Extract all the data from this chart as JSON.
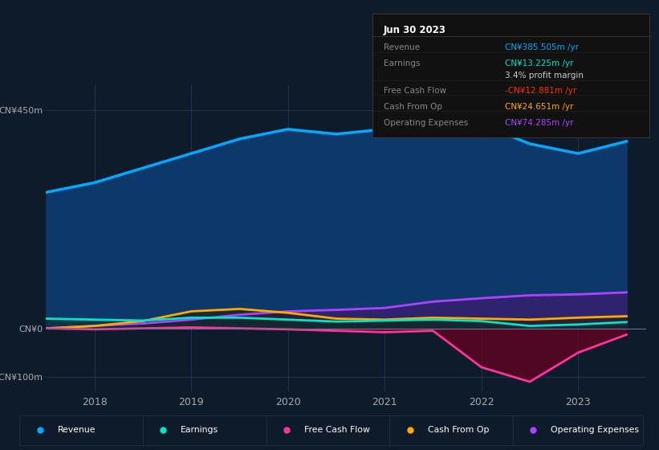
{
  "bg_color": "#0d1b2a",
  "chart_bg": "#0d1b2a",
  "ylim": [
    -130,
    500
  ],
  "years": [
    2017.5,
    2018.0,
    2018.5,
    2019.0,
    2019.5,
    2020.0,
    2020.5,
    2021.0,
    2021.5,
    2022.0,
    2022.5,
    2023.0,
    2023.5
  ],
  "revenue": [
    280,
    300,
    330,
    360,
    390,
    410,
    400,
    410,
    430,
    420,
    380,
    360,
    385
  ],
  "earnings": [
    20,
    18,
    16,
    22,
    22,
    18,
    14,
    16,
    18,
    15,
    5,
    8,
    13
  ],
  "free_cash_flow": [
    0,
    -2,
    0,
    2,
    0,
    -2,
    -5,
    -8,
    -5,
    -80,
    -110,
    -50,
    -13
  ],
  "cash_from_op": [
    0,
    5,
    15,
    35,
    40,
    32,
    20,
    18,
    22,
    20,
    18,
    22,
    25
  ],
  "operating_expenses": [
    0,
    5,
    10,
    18,
    28,
    35,
    38,
    42,
    55,
    62,
    68,
    70,
    74
  ],
  "revenue_color": "#00aaff",
  "earnings_color": "#00e5cc",
  "fcf_color": "#ff3399",
  "cashop_color": "#ffaa00",
  "opex_color": "#aa44ff",
  "legend_items": [
    "Revenue",
    "Earnings",
    "Free Cash Flow",
    "Cash From Op",
    "Operating Expenses"
  ],
  "legend_colors": [
    "#00aaff",
    "#00e5cc",
    "#ff3399",
    "#ffaa00",
    "#aa44ff"
  ],
  "info_title": "Jun 30 2023",
  "info_rows": [
    {
      "label": "Revenue",
      "value": "CN¥385.505m /yr",
      "value_color": "#00aaff"
    },
    {
      "label": "Earnings",
      "value": "CN¥13.225m /yr",
      "value_color": "#00e5cc"
    },
    {
      "label": "",
      "value": "3.4% profit margin",
      "value_color": "#cccccc"
    },
    {
      "label": "Free Cash Flow",
      "value": "-CN¥12.881m /yr",
      "value_color": "#ff3300"
    },
    {
      "label": "Cash From Op",
      "value": "CN¥24.651m /yr",
      "value_color": "#ffaa00"
    },
    {
      "label": "Operating Expenses",
      "value": "CN¥74.285m /yr",
      "value_color": "#aa44ff"
    }
  ]
}
